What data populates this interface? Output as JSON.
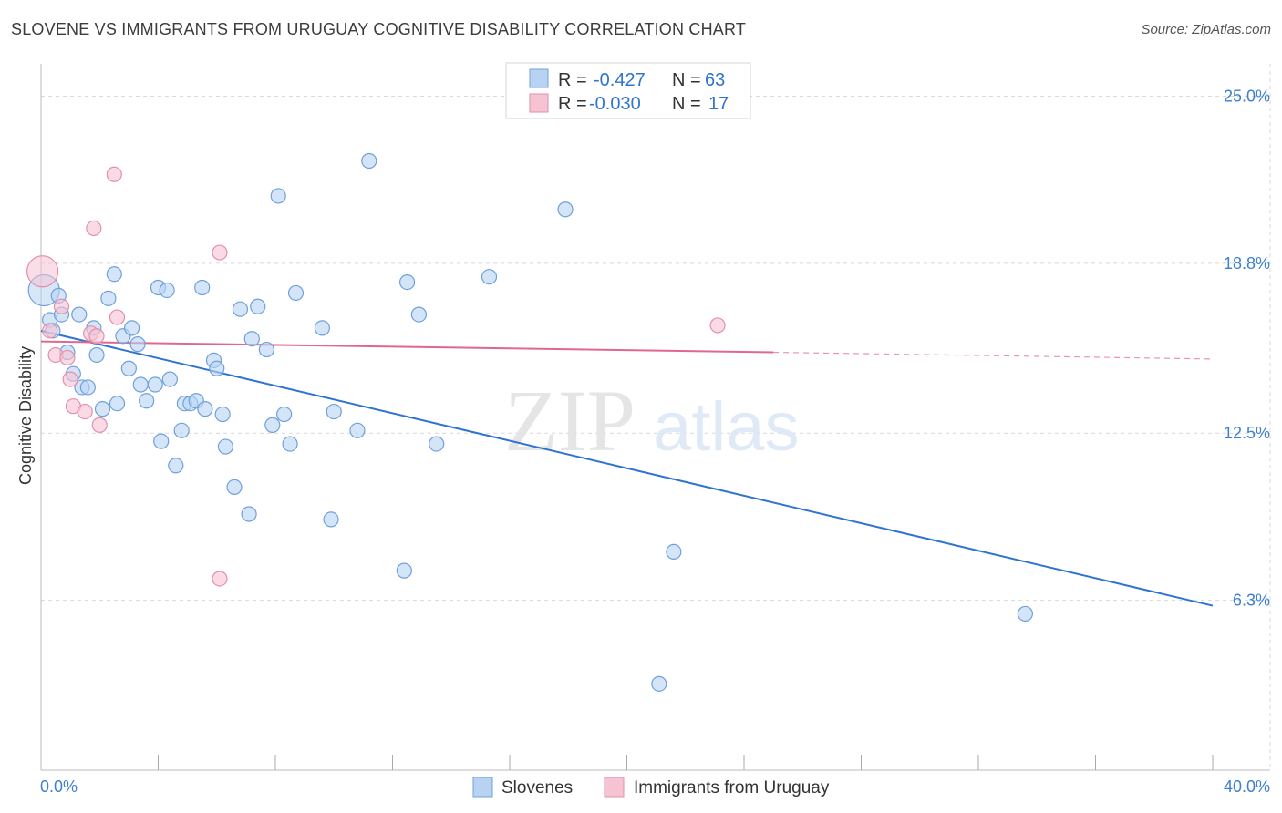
{
  "title": "SLOVENE VS IMMIGRANTS FROM URUGUAY COGNITIVE DISABILITY CORRELATION CHART",
  "source": "Source: ZipAtlas.com",
  "watermark": {
    "zip": "ZIP",
    "atlas": "atlas"
  },
  "colors": {
    "blue_fill": "#b8d3f2",
    "blue_stroke": "#6fa0dc",
    "blue_line": "#2f74d0",
    "pink_fill": "#f6c3d3",
    "pink_stroke": "#e48fab",
    "pink_line": "#e06890",
    "tick_text": "#3d7fd0",
    "grid": "#d9d9d9"
  },
  "stats_legend": [
    {
      "r_label": "R =",
      "r_value": "-0.427",
      "n_label": "N =",
      "n_value": "63"
    },
    {
      "r_label": "R =",
      "r_value": "-0.030",
      "n_label": "N =",
      "n_value": "17"
    }
  ],
  "chart_data": {
    "type": "scatter",
    "xlabel": "",
    "ylabel": "Cognitive Disability",
    "xlim": [
      0,
      40
    ],
    "ylim": [
      0,
      26.2
    ],
    "x_tick_labels": [
      "0.0%",
      "40.0%"
    ],
    "y_ticks": [
      6.3,
      12.5,
      18.8,
      25.0
    ],
    "y_tick_labels": [
      "6.3%",
      "12.5%",
      "18.8%",
      "25.0%"
    ],
    "grid": true,
    "legend_placement": "bottom-center",
    "series": [
      {
        "name": "Slovenes",
        "points": [
          [
            0.1,
            17.8
          ],
          [
            0.3,
            16.7
          ],
          [
            0.4,
            16.3
          ],
          [
            0.6,
            17.6
          ],
          [
            0.7,
            16.9
          ],
          [
            0.9,
            15.5
          ],
          [
            1.1,
            14.7
          ],
          [
            1.3,
            16.9
          ],
          [
            1.4,
            14.2
          ],
          [
            1.6,
            14.2
          ],
          [
            1.8,
            16.4
          ],
          [
            1.9,
            15.4
          ],
          [
            2.1,
            13.4
          ],
          [
            2.3,
            17.5
          ],
          [
            2.5,
            18.4
          ],
          [
            2.6,
            13.6
          ],
          [
            2.8,
            16.1
          ],
          [
            3.0,
            14.9
          ],
          [
            3.1,
            16.4
          ],
          [
            3.3,
            15.8
          ],
          [
            3.4,
            14.3
          ],
          [
            3.6,
            13.7
          ],
          [
            3.9,
            14.3
          ],
          [
            4.0,
            17.9
          ],
          [
            4.1,
            12.2
          ],
          [
            4.3,
            17.8
          ],
          [
            4.4,
            14.5
          ],
          [
            4.6,
            11.3
          ],
          [
            4.8,
            12.6
          ],
          [
            4.9,
            13.6
          ],
          [
            5.1,
            13.6
          ],
          [
            5.3,
            13.7
          ],
          [
            5.6,
            13.4
          ],
          [
            5.5,
            17.9
          ],
          [
            5.9,
            15.2
          ],
          [
            6.0,
            14.9
          ],
          [
            6.2,
            13.2
          ],
          [
            6.3,
            12.0
          ],
          [
            6.6,
            10.5
          ],
          [
            6.8,
            17.1
          ],
          [
            7.1,
            9.5
          ],
          [
            7.2,
            16.0
          ],
          [
            7.4,
            17.2
          ],
          [
            7.7,
            15.6
          ],
          [
            7.9,
            12.8
          ],
          [
            8.1,
            21.3
          ],
          [
            8.3,
            13.2
          ],
          [
            8.5,
            12.1
          ],
          [
            8.7,
            17.7
          ],
          [
            9.6,
            16.4
          ],
          [
            9.9,
            9.3
          ],
          [
            10.0,
            13.3
          ],
          [
            10.8,
            12.6
          ],
          [
            11.2,
            22.6
          ],
          [
            12.4,
            7.4
          ],
          [
            12.5,
            18.1
          ],
          [
            12.9,
            16.9
          ],
          [
            13.5,
            12.1
          ],
          [
            15.3,
            18.3
          ],
          [
            17.9,
            20.8
          ],
          [
            21.6,
            8.1
          ],
          [
            33.6,
            5.8
          ],
          [
            21.1,
            3.2
          ]
        ]
      },
      {
        "name": "Immigrants from Uruguay",
        "points": [
          [
            0.05,
            18.5
          ],
          [
            0.3,
            16.3
          ],
          [
            0.5,
            15.4
          ],
          [
            0.7,
            17.2
          ],
          [
            0.9,
            15.3
          ],
          [
            1.0,
            14.5
          ],
          [
            1.1,
            13.5
          ],
          [
            1.5,
            13.3
          ],
          [
            1.7,
            16.2
          ],
          [
            1.8,
            20.1
          ],
          [
            2.0,
            12.8
          ],
          [
            2.5,
            22.1
          ],
          [
            2.6,
            16.8
          ],
          [
            6.1,
            7.1
          ],
          [
            6.1,
            19.2
          ],
          [
            23.1,
            16.5
          ],
          [
            1.9,
            16.1
          ]
        ]
      }
    ],
    "trend_lines": [
      {
        "name": "Slovenes",
        "from": [
          0.0,
          16.3
        ],
        "to": [
          40.0,
          6.1
        ]
      },
      {
        "name": "Immigrants from Uruguay",
        "from": [
          0.0,
          15.9
        ],
        "to": [
          25.0,
          15.5
        ],
        "dashed_to": [
          40.0,
          15.25
        ]
      }
    ]
  }
}
